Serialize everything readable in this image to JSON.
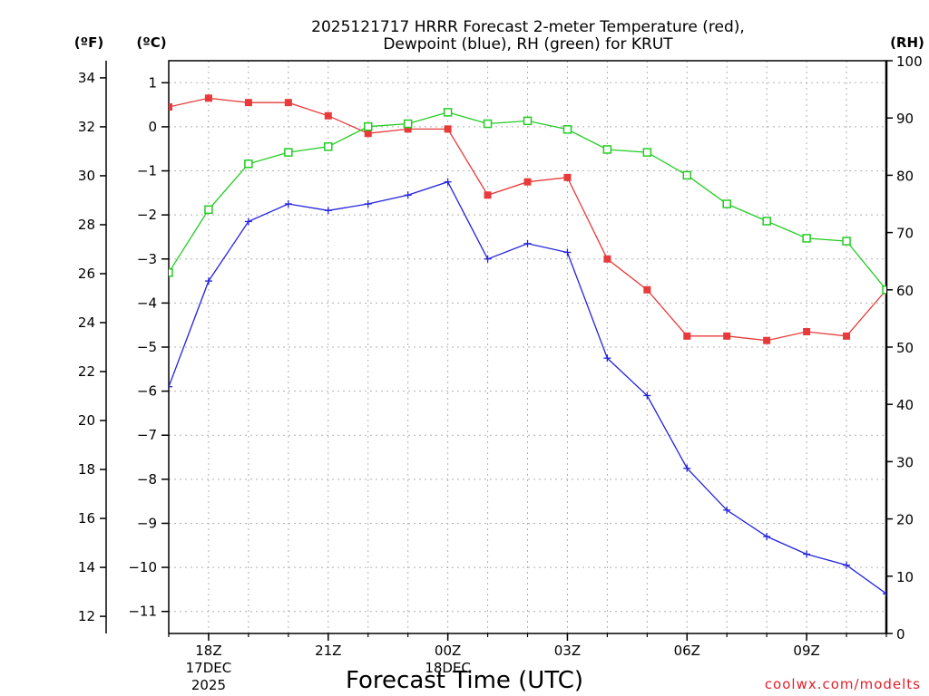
{
  "chart_data": {
    "type": "line",
    "title": "2025121717 HRRR Forecast 2-meter Temperature (red),",
    "subtitle": "Dewpoint (blue), RH (green) for KRUT",
    "xlabel": "Forecast Time (UTC)",
    "credit": "coolwx.com/modelts",
    "units": {
      "fahrenheit": "(ºF)",
      "celsius": "(ºC)",
      "rh": "(RH)"
    },
    "x_hours": [
      17,
      18,
      19,
      20,
      21,
      22,
      23,
      24,
      25,
      26,
      27,
      28,
      29,
      30,
      31,
      32,
      33,
      34,
      35
    ],
    "x_ticks": [
      {
        "hour": 18,
        "label": "18Z",
        "line2": "17DEC",
        "line3": "2025"
      },
      {
        "hour": 21,
        "label": "21Z",
        "line2": "",
        "line3": ""
      },
      {
        "hour": 24,
        "label": "00Z",
        "line2": "18DEC",
        "line3": ""
      },
      {
        "hour": 27,
        "label": "03Z",
        "line2": "",
        "line3": ""
      },
      {
        "hour": 30,
        "label": "06Z",
        "line2": "",
        "line3": ""
      },
      {
        "hour": 33,
        "label": "09Z",
        "line2": "",
        "line3": ""
      }
    ],
    "xlim": [
      17,
      35
    ],
    "celsius_axis": {
      "range": [
        -11.5,
        1.5
      ],
      "ticks": [
        1,
        0,
        -1,
        -2,
        -3,
        -4,
        -5,
        -6,
        -7,
        -8,
        -9,
        -10,
        -11
      ]
    },
    "fahrenheit_axis": {
      "ticks": [
        34,
        32,
        30,
        28,
        26,
        24,
        22,
        20,
        18,
        16,
        14,
        12
      ]
    },
    "rh_axis": {
      "range": [
        0,
        100
      ],
      "ticks": [
        100,
        90,
        80,
        70,
        60,
        50,
        40,
        30,
        20,
        10,
        0
      ]
    },
    "series": [
      {
        "name": "2-meter Temperature",
        "axis": "celsius",
        "color": "#e83a3a",
        "marker": "filled-square",
        "values": [
          0.45,
          0.65,
          0.55,
          0.55,
          0.25,
          -0.15,
          -0.05,
          -0.05,
          -1.55,
          -1.25,
          -1.15,
          -3.0,
          -3.7,
          -4.75,
          -4.75,
          -4.85,
          -4.65,
          -4.75,
          -3.7
        ]
      },
      {
        "name": "Dewpoint",
        "axis": "celsius",
        "color": "#2222dd",
        "marker": "plus",
        "values": [
          -5.9,
          -3.5,
          -2.15,
          -1.75,
          -1.9,
          -1.75,
          -1.55,
          -1.25,
          -3.0,
          -2.65,
          -2.85,
          -5.25,
          -6.1,
          -7.75,
          -8.7,
          -9.3,
          -9.7,
          -9.95,
          -10.6
        ]
      },
      {
        "name": "RH",
        "axis": "rh",
        "color": "#22cc22",
        "marker": "open-square",
        "values": [
          63,
          74,
          82,
          84,
          85,
          88.5,
          89,
          91,
          89,
          89.5,
          88,
          84.5,
          84,
          80,
          75,
          72,
          69,
          68.5,
          60
        ]
      }
    ]
  }
}
